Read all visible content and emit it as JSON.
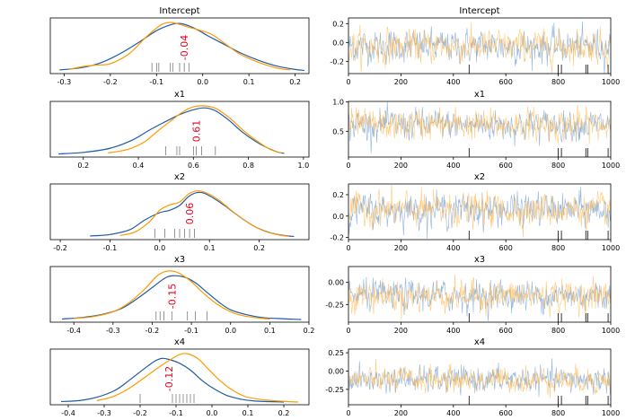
{
  "colors": {
    "chain_a": "#1f5aa6",
    "chain_b": "#ff9a00",
    "trace_a": "#6f9bd0",
    "trace_b": "#ffb84d",
    "mean_label": "#e8001f",
    "rug": "#000000"
  },
  "chart_data": [
    {
      "type": "line",
      "title": "Intercept",
      "xlim": [
        -0.33,
        0.23
      ],
      "xticks": [
        "-0.3",
        "-0.2",
        "-0.1",
        "0.0",
        "0.1",
        "0.2"
      ],
      "mean_label": "-0.04",
      "mean_value": -0.04,
      "series": [
        {
          "color": "chain_a",
          "x": [
            -0.31,
            -0.26,
            -0.22,
            -0.18,
            -0.14,
            -0.1,
            -0.07,
            -0.05,
            -0.03,
            -0.01,
            0.01,
            0.04,
            0.08,
            0.12,
            0.16,
            0.2,
            0.22
          ],
          "y": [
            0.02,
            0.07,
            0.17,
            0.35,
            0.58,
            0.83,
            0.95,
            0.98,
            0.93,
            0.84,
            0.73,
            0.58,
            0.38,
            0.22,
            0.1,
            0.03,
            0.01
          ]
        },
        {
          "color": "chain_b",
          "x": [
            -0.29,
            -0.26,
            -0.23,
            -0.2,
            -0.16,
            -0.12,
            -0.09,
            -0.07,
            -0.05,
            -0.03,
            -0.01,
            0.02,
            0.05,
            0.08,
            0.12,
            0.16,
            0.19
          ],
          "y": [
            0.03,
            0.09,
            0.12,
            0.15,
            0.35,
            0.72,
            0.95,
            1.0,
            0.96,
            0.9,
            0.85,
            0.75,
            0.55,
            0.35,
            0.18,
            0.06,
            0.02
          ]
        }
      ],
      "rug": [
        -0.11,
        -0.1,
        -0.095,
        -0.07,
        -0.065,
        -0.05,
        -0.04,
        -0.03
      ]
    },
    {
      "type": "line",
      "title": "x1",
      "xlim": [
        0.08,
        1.02
      ],
      "xticks": [
        "0.2",
        "0.4",
        "0.6",
        "0.8",
        "1.0"
      ],
      "mean_label": "0.61",
      "mean_value": 0.61,
      "series": [
        {
          "color": "chain_a",
          "x": [
            0.11,
            0.2,
            0.3,
            0.38,
            0.44,
            0.5,
            0.55,
            0.6,
            0.64,
            0.68,
            0.73,
            0.78,
            0.84,
            0.9,
            0.93
          ],
          "y": [
            0.01,
            0.04,
            0.13,
            0.3,
            0.5,
            0.68,
            0.82,
            0.92,
            0.96,
            0.9,
            0.7,
            0.45,
            0.22,
            0.06,
            0.02
          ]
        },
        {
          "color": "chain_b",
          "x": [
            0.29,
            0.36,
            0.42,
            0.47,
            0.52,
            0.56,
            0.6,
            0.64,
            0.68,
            0.73,
            0.78,
            0.83,
            0.88,
            0.92
          ],
          "y": [
            0.03,
            0.1,
            0.25,
            0.48,
            0.7,
            0.87,
            0.98,
            1.0,
            0.95,
            0.76,
            0.5,
            0.28,
            0.1,
            0.03
          ]
        }
      ],
      "rug": [
        0.5,
        0.54,
        0.55,
        0.6,
        0.61,
        0.63,
        0.68
      ]
    },
    {
      "type": "line",
      "title": "x2",
      "xlim": [
        -0.22,
        0.3
      ],
      "xticks": [
        "-0.2",
        "-0.1",
        "0.0",
        "0.1",
        "0.2"
      ],
      "mean_label": "0.06",
      "mean_value": 0.06,
      "series": [
        {
          "color": "chain_a",
          "x": [
            -0.14,
            -0.1,
            -0.06,
            -0.03,
            0.0,
            0.02,
            0.04,
            0.06,
            0.08,
            0.1,
            0.13,
            0.16,
            0.19,
            0.22,
            0.25,
            0.27
          ],
          "y": [
            0.02,
            0.05,
            0.15,
            0.35,
            0.5,
            0.55,
            0.65,
            0.85,
            0.92,
            0.85,
            0.65,
            0.42,
            0.22,
            0.09,
            0.03,
            0.01
          ]
        },
        {
          "color": "chain_b",
          "x": [
            -0.08,
            -0.05,
            -0.02,
            0.0,
            0.02,
            0.04,
            0.06,
            0.08,
            0.1,
            0.12,
            0.15,
            0.18,
            0.21,
            0.24,
            0.26
          ],
          "y": [
            0.03,
            0.1,
            0.32,
            0.55,
            0.66,
            0.72,
            0.9,
            0.95,
            0.88,
            0.75,
            0.5,
            0.28,
            0.12,
            0.04,
            0.01
          ]
        }
      ],
      "rug": [
        -0.01,
        0.01,
        0.03,
        0.04,
        0.05,
        0.06,
        0.07
      ]
    },
    {
      "type": "line",
      "title": "x3",
      "xlim": [
        -0.46,
        0.2
      ],
      "xticks": [
        "-0.4",
        "-0.3",
        "-0.2",
        "-0.1",
        "0.0",
        "0.1",
        "0.2"
      ],
      "mean_label": "-0.15",
      "mean_value": -0.15,
      "series": [
        {
          "color": "chain_a",
          "x": [
            -0.43,
            -0.38,
            -0.33,
            -0.28,
            -0.24,
            -0.2,
            -0.17,
            -0.15,
            -0.12,
            -0.09,
            -0.06,
            -0.03,
            0.0,
            0.04,
            0.08,
            0.12,
            0.16,
            0.18
          ],
          "y": [
            0.01,
            0.04,
            0.1,
            0.22,
            0.42,
            0.66,
            0.84,
            0.9,
            0.88,
            0.76,
            0.56,
            0.36,
            0.2,
            0.1,
            0.04,
            0.02,
            0.005,
            0.0
          ]
        },
        {
          "color": "chain_b",
          "x": [
            -0.4,
            -0.35,
            -0.3,
            -0.26,
            -0.22,
            -0.19,
            -0.17,
            -0.15,
            -0.13,
            -0.1,
            -0.07,
            -0.04,
            -0.01,
            0.02,
            0.06,
            0.1
          ],
          "y": [
            0.02,
            0.06,
            0.16,
            0.34,
            0.62,
            0.88,
            0.98,
            1.0,
            0.95,
            0.78,
            0.55,
            0.35,
            0.2,
            0.1,
            0.04,
            0.01
          ]
        }
      ],
      "rug": [
        -0.19,
        -0.18,
        -0.17,
        -0.15,
        -0.11,
        -0.09,
        -0.06
      ]
    },
    {
      "type": "line",
      "title": "x4",
      "xlim": [
        -0.45,
        0.27
      ],
      "xticks": [
        "-0.4",
        "-0.3",
        "-0.2",
        "-0.1",
        "0.0",
        "0.1",
        "0.2"
      ],
      "mean_label": "-0.12",
      "mean_value": -0.12,
      "series": [
        {
          "color": "chain_a",
          "x": [
            -0.42,
            -0.37,
            -0.32,
            -0.27,
            -0.23,
            -0.19,
            -0.16,
            -0.14,
            -0.12,
            -0.09,
            -0.06,
            -0.03,
            0.0,
            0.04,
            0.08,
            0.12,
            0.16,
            0.2
          ],
          "y": [
            0.01,
            0.03,
            0.1,
            0.24,
            0.45,
            0.68,
            0.84,
            0.9,
            0.88,
            0.8,
            0.66,
            0.46,
            0.3,
            0.14,
            0.06,
            0.02,
            0.01,
            0.0
          ]
        },
        {
          "color": "chain_b",
          "x": [
            -0.32,
            -0.28,
            -0.24,
            -0.2,
            -0.17,
            -0.14,
            -0.11,
            -0.09,
            -0.07,
            -0.04,
            -0.01,
            0.02,
            0.05,
            0.09,
            0.13,
            0.17,
            0.21,
            0.24
          ],
          "y": [
            0.03,
            0.1,
            0.24,
            0.44,
            0.6,
            0.76,
            0.9,
            0.98,
            1.0,
            0.9,
            0.68,
            0.46,
            0.28,
            0.12,
            0.06,
            0.03,
            0.01,
            0.0
          ]
        }
      ],
      "rug": [
        -0.2,
        -0.11,
        -0.1,
        -0.09,
        -0.08,
        -0.07,
        -0.06,
        -0.05
      ]
    }
  ],
  "trace_data": [
    {
      "type": "line",
      "title": "Intercept",
      "xlim": [
        0,
        1000
      ],
      "xticks": [
        "0",
        "200",
        "400",
        "600",
        "800",
        "1000"
      ],
      "ylim": [
        -0.33,
        0.26
      ],
      "yticks": [
        {
          "v": 0.2,
          "label": "0.2"
        },
        {
          "v": 0.0,
          "label": "0.0"
        },
        {
          "v": -0.2,
          "label": "-0.2"
        }
      ],
      "center": -0.04,
      "spread": 0.08,
      "rug": [
        460,
        800,
        812,
        905,
        912,
        990
      ]
    },
    {
      "type": "line",
      "title": "x1",
      "xlim": [
        0,
        1000
      ],
      "xticks": [
        "0",
        "200",
        "400",
        "600",
        "800",
        "1000"
      ],
      "ylim": [
        0.06,
        1.01
      ],
      "yticks": [
        {
          "v": 1.0,
          "label": "1.0"
        },
        {
          "v": 0.5,
          "label": "0.5"
        }
      ],
      "center": 0.61,
      "spread": 0.12,
      "rug": [
        460,
        800,
        812,
        905,
        912,
        990
      ]
    },
    {
      "type": "line",
      "title": "x2",
      "xlim": [
        0,
        1000
      ],
      "xticks": [
        "0",
        "200",
        "400",
        "600",
        "800",
        "1000"
      ],
      "ylim": [
        -0.22,
        0.3
      ],
      "yticks": [
        {
          "v": 0.2,
          "label": "0.2"
        },
        {
          "v": 0.0,
          "label": "0.0"
        },
        {
          "v": -0.2,
          "label": "-0.2"
        }
      ],
      "center": 0.06,
      "spread": 0.07,
      "rug": [
        460,
        800,
        812,
        905,
        912,
        990
      ]
    },
    {
      "type": "line",
      "title": "x3",
      "xlim": [
        0,
        1000
      ],
      "xticks": [
        "0",
        "200",
        "400",
        "600",
        "800",
        "1000"
      ],
      "ylim": [
        -0.45,
        0.18
      ],
      "yticks": [
        {
          "v": 0.0,
          "label": "0.00"
        },
        {
          "v": -0.25,
          "label": "-0.25"
        }
      ],
      "center": -0.15,
      "spread": 0.08,
      "rug": [
        460,
        800,
        812,
        905,
        912,
        990
      ]
    },
    {
      "type": "line",
      "title": "x4",
      "xlim": [
        0,
        1000
      ],
      "xticks": [
        "0",
        "200",
        "400",
        "600",
        "800",
        "1000"
      ],
      "ylim": [
        -0.46,
        0.3
      ],
      "yticks": [
        {
          "v": 0.25,
          "label": "0.25"
        },
        {
          "v": 0.0,
          "label": "0.00"
        },
        {
          "v": -0.25,
          "label": "-0.25"
        }
      ],
      "center": -0.12,
      "spread": 0.08,
      "rug": [
        460,
        800,
        812,
        905,
        912,
        990
      ]
    }
  ]
}
